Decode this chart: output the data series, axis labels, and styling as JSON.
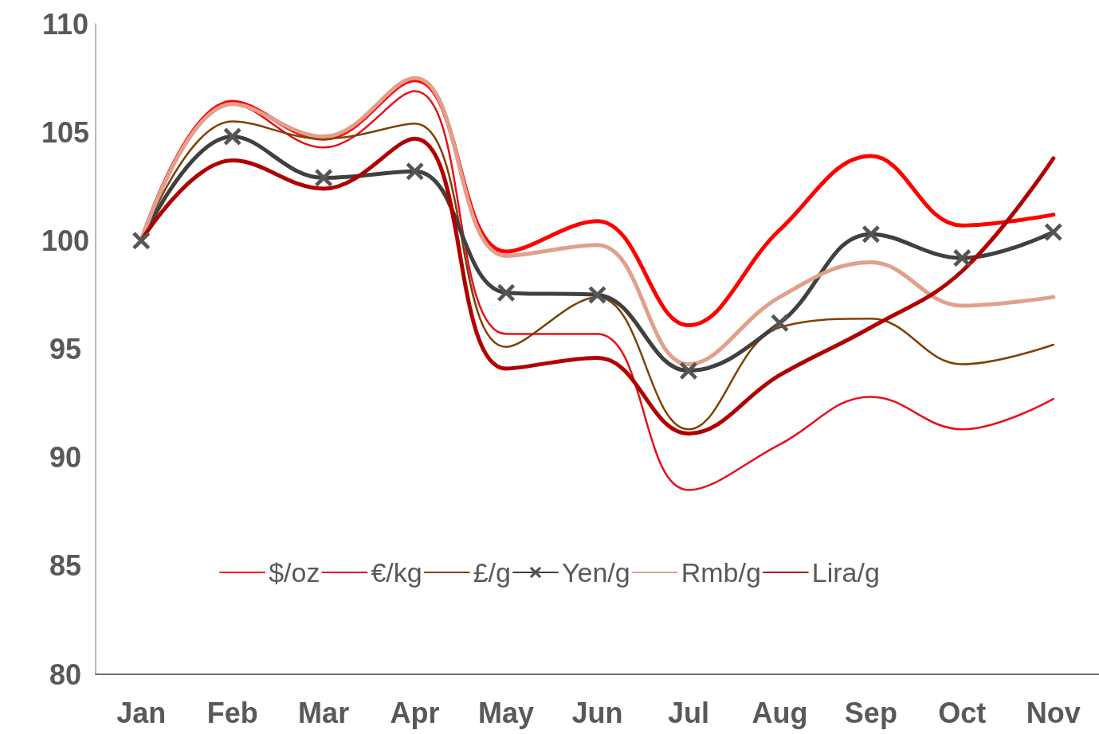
{
  "chart_data": {
    "type": "line",
    "categories": [
      "Jan",
      "Feb",
      "Mar",
      "Apr",
      "May",
      "Jun",
      "Jul",
      "Aug",
      "Sep",
      "Oct",
      "Nov"
    ],
    "series": [
      {
        "name": "$/oz",
        "color": "#ff0000",
        "values": [
          100,
          106.4,
          104.7,
          107.4,
          99.5,
          100.9,
          96.1,
          100.5,
          103.9,
          100.7,
          101.2
        ]
      },
      {
        "name": "€/kg",
        "color": "#e8101a",
        "values": [
          100,
          106.3,
          104.3,
          106.9,
          95.7,
          95.7,
          88.5,
          90.6,
          92.8,
          91.3,
          92.7
        ]
      },
      {
        "name": "£/g",
        "color": "#804000",
        "values": [
          100,
          105.5,
          104.7,
          105.4,
          95.1,
          97.4,
          91.3,
          96.0,
          96.4,
          94.3,
          95.2
        ]
      },
      {
        "name": "Yen/g",
        "color": "#404040",
        "marker": "cross",
        "values": [
          100,
          104.8,
          102.9,
          103.2,
          97.6,
          97.5,
          94.0,
          96.2,
          100.3,
          99.2,
          100.4
        ]
      },
      {
        "name": "Rmb/g",
        "color": "#e0a08c",
        "values": [
          100,
          106.3,
          104.8,
          107.5,
          99.3,
          99.8,
          94.3,
          97.4,
          99.0,
          97.0,
          97.4
        ]
      },
      {
        "name": "Lira/g",
        "color": "#b00000",
        "values": [
          100,
          103.7,
          102.4,
          104.7,
          94.1,
          94.6,
          91.1,
          93.8,
          96.0,
          98.6,
          103.8
        ]
      }
    ],
    "ylim": [
      80,
      110
    ],
    "yticks": [
      80,
      85,
      90,
      95,
      100,
      105,
      110
    ],
    "grid": false,
    "legend": "bottom",
    "marker": "none"
  }
}
